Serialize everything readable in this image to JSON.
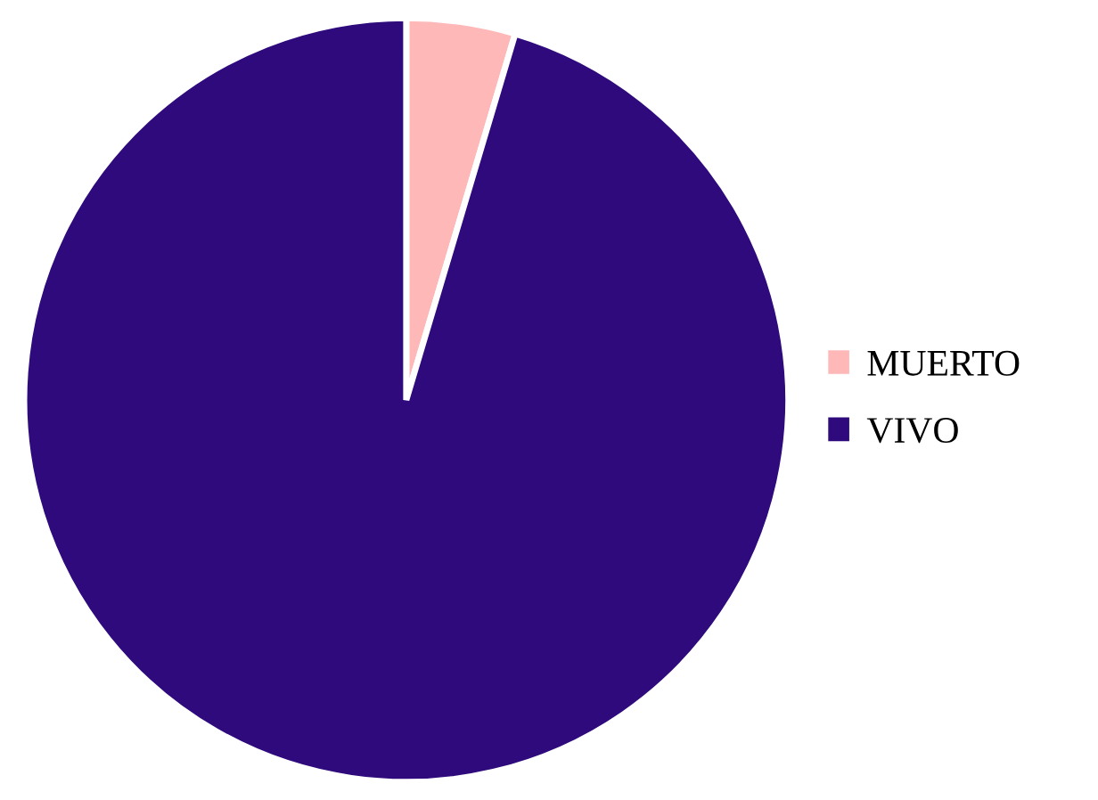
{
  "chart_data": {
    "type": "pie",
    "categories": [
      "MUERTO",
      "VIVO"
    ],
    "values": [
      4.6,
      95.4
    ],
    "colors": [
      "#ffb8b8",
      "#2e0a7c"
    ],
    "legend": "right"
  }
}
